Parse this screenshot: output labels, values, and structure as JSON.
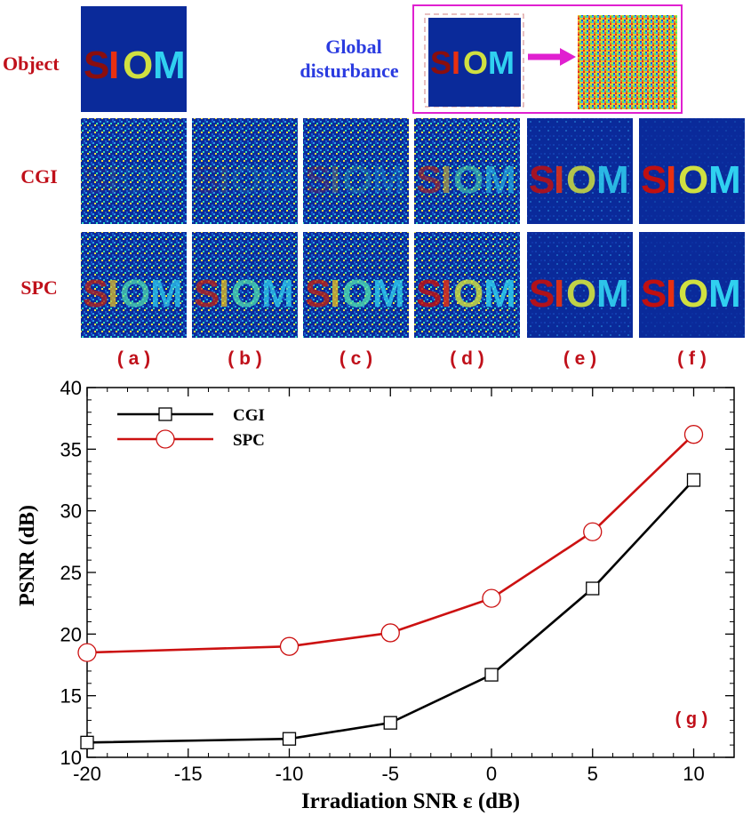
{
  "labels": {
    "object": "Object",
    "global_line1": "Global",
    "global_line2": "disturbance",
    "cgi_row": "CGI",
    "spc_row": "SPC",
    "image_text": "SIOM",
    "subfigure_labels": [
      "( a )",
      "( b )",
      "( c )",
      "( d )",
      "( e )",
      "( f )"
    ],
    "plot_label": "( g )"
  },
  "colors": {
    "label_red": "#c0101a",
    "label_blue": "#2a3be0",
    "image_bg": "#0a2a9a",
    "frame_magenta": "#e020d0",
    "cgi_line": "#000000",
    "spc_line": "#cc1111"
  },
  "panels": {
    "cgi_clarity": [
      0.08,
      0.12,
      0.22,
      0.55,
      0.85,
      1.0
    ],
    "spc_clarity": [
      0.72,
      0.75,
      0.78,
      0.82,
      0.92,
      1.0
    ],
    "noise_level": [
      1.0,
      0.9,
      0.8,
      0.5,
      0.25,
      0.1
    ]
  },
  "chart_data": {
    "type": "line",
    "title": "",
    "xlabel": "Irradiation SNR ε (dB)",
    "ylabel": "PSNR (dB)",
    "x": [
      -20,
      -10,
      -5,
      0,
      5,
      10
    ],
    "xlim": [
      -20,
      12
    ],
    "ylim": [
      10,
      40
    ],
    "xticks": [
      -20,
      -15,
      -10,
      -5,
      0,
      5,
      10
    ],
    "yticks": [
      10,
      15,
      20,
      25,
      30,
      35,
      40
    ],
    "series": [
      {
        "name": "CGI",
        "values": [
          11.2,
          11.5,
          12.8,
          16.7,
          23.7,
          32.5
        ],
        "marker": "square",
        "color": "#000000"
      },
      {
        "name": "SPC",
        "values": [
          18.5,
          19.0,
          20.1,
          22.9,
          28.3,
          36.2
        ],
        "marker": "circle",
        "color": "#cc1111"
      }
    ],
    "legend": "top-left"
  }
}
